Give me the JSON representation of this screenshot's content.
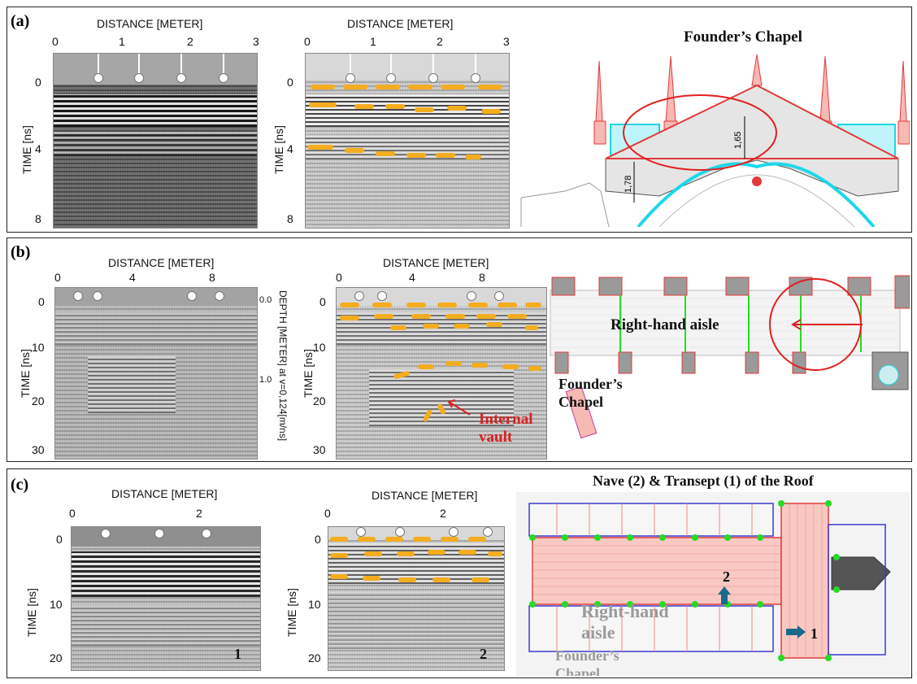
{
  "panels": {
    "a": {
      "label": "(a)",
      "left_plot": {
        "xlabel": "DISTANCE [METER]",
        "ylabel": "TIME [ns]",
        "xticks": [
          "0",
          "1",
          "2",
          "3"
        ],
        "yticks": [
          "0",
          "4",
          "8"
        ]
      },
      "right_plot": {
        "xlabel": "DISTANCE [METER]",
        "ylabel": "TIME [ns]",
        "xticks": [
          "0",
          "1",
          "2",
          "3"
        ],
        "yticks": [
          "0",
          "4",
          "8"
        ]
      },
      "drawing": {
        "title": "Founder’s Chapel",
        "dim1": "1,65",
        "dim2": "1,78"
      }
    },
    "b": {
      "label": "(b)",
      "left_plot": {
        "xlabel": "DISTANCE [METER]",
        "ylabel": "TIME [ns]",
        "xticks": [
          "0",
          "4",
          "8"
        ],
        "yticks": [
          "0",
          "10",
          "20",
          "30"
        ],
        "depth_label": "DEPTH [METER] at v=0,124[m/ns]",
        "depth_ticks": [
          "0.0",
          "1.0"
        ]
      },
      "right_plot": {
        "xlabel": "DISTANCE [METER]",
        "ylabel": "TIME [ns]",
        "xticks": [
          "0",
          "4",
          "8"
        ],
        "yticks": [
          "0",
          "10",
          "20",
          "30"
        ],
        "annotation": "Internal vault"
      },
      "drawing": {
        "main_label": "Right-hand aisle",
        "sub_label": "Founder’s Chapel"
      }
    },
    "c": {
      "label": "(c)",
      "left_plot": {
        "xlabel": "DISTANCE [METER]",
        "ylabel": "TIME [ns]",
        "xticks": [
          "0",
          "2"
        ],
        "yticks": [
          "0",
          "10",
          "20"
        ],
        "corner": "1"
      },
      "right_plot": {
        "xlabel": "DISTANCE [METER]",
        "ylabel": "TIME [ns]",
        "xticks": [
          "0",
          "2"
        ],
        "yticks": [
          "0",
          "10",
          "20"
        ],
        "corner": "2"
      },
      "drawing": {
        "title": "Nave (2) & Transept (1) of the Roof",
        "aisle_label": "Right-hand aisle",
        "chapel_label": "Founder’s Chapel",
        "num1": "1",
        "num2": "2"
      }
    }
  },
  "colors": {
    "dash": "#f3ad1e",
    "annotation": "#d92020",
    "roof_pink": "#f7b9b4",
    "cyan": "#1ed7e8",
    "green": "#22dd22"
  }
}
